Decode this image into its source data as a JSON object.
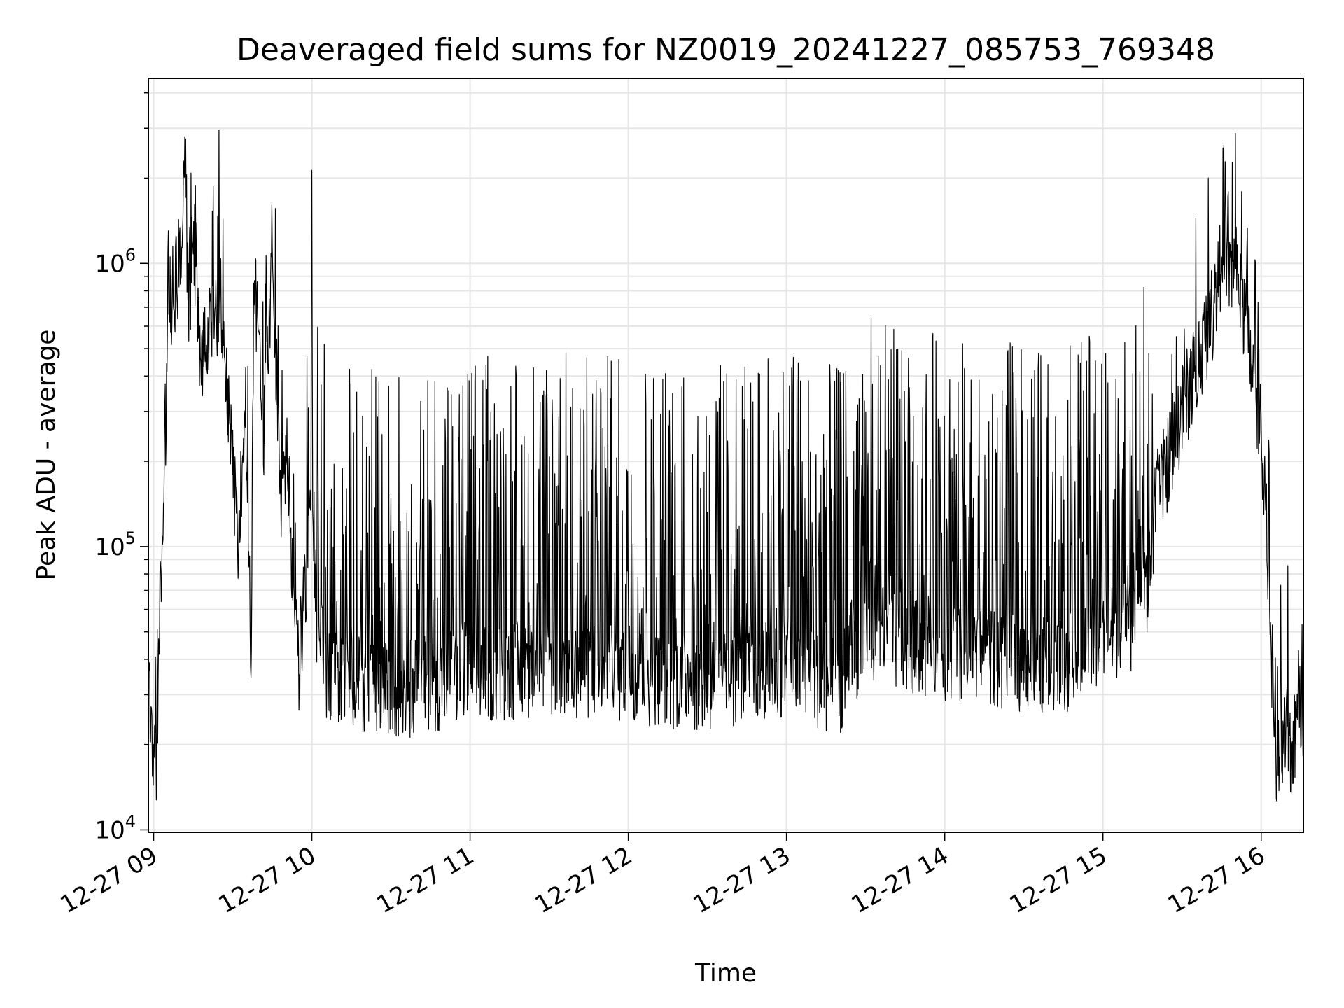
{
  "chart_data": {
    "type": "line",
    "title": "Deaveraged field sums for NZ0019_20241227_085753_769348",
    "xlabel": "Time",
    "ylabel": "Peak ADU - average",
    "yscale": "log",
    "ylim": [
      9800,
      4500000
    ],
    "xlim": [
      "2024-12-27 08:58",
      "2024-12-27 16:16"
    ],
    "x_ticks": [
      "12-27 09",
      "12-27 10",
      "12-27 11",
      "12-27 12",
      "12-27 13",
      "12-27 14",
      "12-27 15",
      "12-27 16"
    ],
    "y_ticks": [
      {
        "base": "10",
        "exp": "4",
        "value": 10000
      },
      {
        "base": "10",
        "exp": "5",
        "value": 100000
      },
      {
        "base": "10",
        "exp": "6",
        "value": 1000000
      }
    ],
    "grid": true,
    "line_color": "#000000",
    "grid_color": "#e6e6e6",
    "series": [
      {
        "points": [
          [
            "2024-12-27 08:58",
            30000
          ],
          [
            "2024-12-27 09:00",
            19000
          ],
          [
            "2024-12-27 09:01",
            16000
          ],
          [
            "2024-12-27 09:03",
            90000
          ],
          [
            "2024-12-27 09:04",
            200000
          ],
          [
            "2024-12-27 09:06",
            700000
          ],
          [
            "2024-12-27 09:09",
            900000
          ],
          [
            "2024-12-27 09:11",
            1400000
          ],
          [
            "2024-12-27 09:12",
            2800000
          ],
          [
            "2024-12-27 09:13",
            700000
          ],
          [
            "2024-12-27 09:15",
            900000
          ],
          [
            "2024-12-27 09:18",
            450000
          ],
          [
            "2024-12-27 09:21",
            550000
          ],
          [
            "2024-12-27 09:24",
            700000
          ],
          [
            "2024-12-27 09:27",
            500000
          ],
          [
            "2024-12-27 09:30",
            200000
          ],
          [
            "2024-12-27 09:32",
            90000
          ],
          [
            "2024-12-27 09:35",
            300000
          ],
          [
            "2024-12-27 09:37",
            35000
          ],
          [
            "2024-12-27 09:38",
            900000
          ],
          [
            "2024-12-27 09:42",
            250000
          ],
          [
            "2024-12-27 09:45",
            1000000
          ],
          [
            "2024-12-27 09:48",
            150000
          ],
          [
            "2024-12-27 09:51",
            200000
          ],
          [
            "2024-12-27 09:53",
            70000
          ],
          [
            "2024-12-27 09:55",
            38000
          ],
          [
            "2024-12-27 10:00",
            150000
          ],
          [
            "2024-12-27 10:02",
            42000
          ],
          [
            "2024-12-27 10:06",
            30000
          ],
          [
            "2024-12-27 10:15",
            28000
          ],
          [
            "2024-12-27 10:30",
            26000
          ],
          [
            "2024-12-27 11:00",
            30000
          ],
          [
            "2024-12-27 11:30",
            32000
          ],
          [
            "2024-12-27 12:00",
            30000
          ],
          [
            "2024-12-27 12:30",
            28000
          ],
          [
            "2024-12-27 13:00",
            32000
          ],
          [
            "2024-12-27 13:20",
            27000
          ],
          [
            "2024-12-27 13:30",
            42000
          ],
          [
            "2024-12-27 14:00",
            35000
          ],
          [
            "2024-12-27 14:30",
            33000
          ],
          [
            "2024-12-27 14:45",
            32000
          ],
          [
            "2024-12-27 15:00",
            40000
          ],
          [
            "2024-12-27 15:10",
            45000
          ],
          [
            "2024-12-27 15:17",
            60000
          ],
          [
            "2024-12-27 15:20",
            140000
          ],
          [
            "2024-12-27 15:26",
            220000
          ],
          [
            "2024-12-27 15:30",
            300000
          ],
          [
            "2024-12-27 15:36",
            450000
          ],
          [
            "2024-12-27 15:42",
            700000
          ],
          [
            "2024-12-27 15:45",
            1000000
          ],
          [
            "2024-12-27 15:51",
            900000
          ],
          [
            "2024-12-27 15:57",
            400000
          ],
          [
            "2024-12-27 16:00",
            250000
          ],
          [
            "2024-12-27 16:03",
            80000
          ],
          [
            "2024-12-27 16:04",
            40000
          ],
          [
            "2024-12-27 16:05",
            26000
          ],
          [
            "2024-12-27 16:06",
            15000
          ],
          [
            "2024-12-27 16:08",
            19000
          ],
          [
            "2024-12-27 16:10",
            23000
          ],
          [
            "2024-12-27 16:12",
            17000
          ],
          [
            "2024-12-27 16:14",
            30000
          ],
          [
            "2024-12-27 16:16",
            25000
          ]
        ]
      }
    ]
  }
}
